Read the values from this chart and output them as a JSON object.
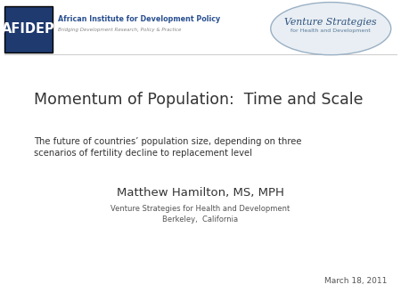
{
  "title": "Momentum of Population:  Time and Scale",
  "subtitle_line1": "The future of countries’ population size, depending on three",
  "subtitle_line2": "scenarios of fertility decline to replacement level",
  "author": "Matthew Hamilton, MS, MPH",
  "org1": "Venture Strategies for Health and Development",
  "org2": "Berkeley,  California",
  "date": "March 18, 2011",
  "afidep_text": "AFIDEP",
  "afidep_org": "African Institute for Development Policy",
  "afidep_sub": "Bridging Development Research, Policy & Practice",
  "vs_line1": "Venture Strategies",
  "vs_line2": "for Health and Development",
  "bg_color": "#ffffff",
  "title_color": "#333333",
  "subtitle_color": "#333333",
  "author_color": "#333333",
  "org_color": "#555555",
  "date_color": "#555555",
  "afidep_bg": "#1e3a6e",
  "afidep_text_color": "#ffffff",
  "logo_border_color": "#9ab0c4",
  "logo_bg_color": "#e8eef3"
}
